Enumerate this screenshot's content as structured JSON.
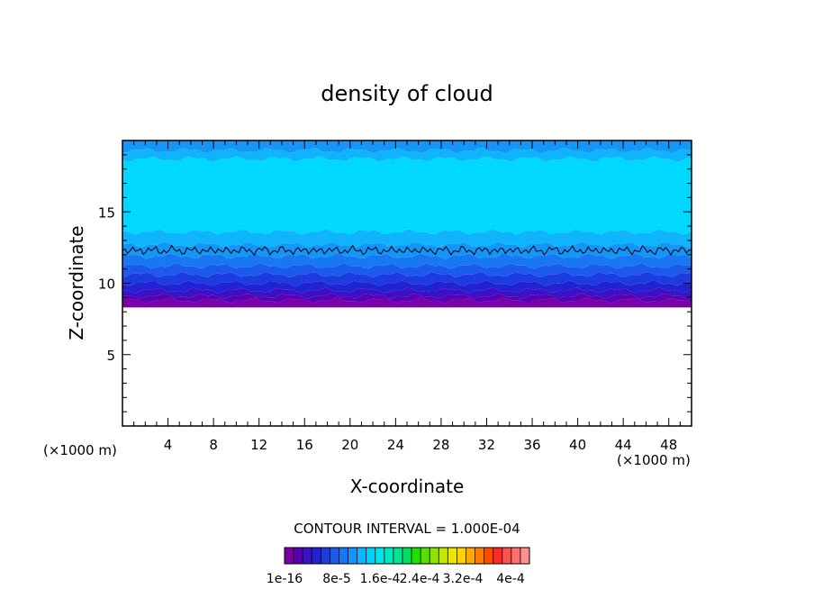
{
  "chart_data": {
    "type": "heatmap",
    "title": "density of cloud",
    "xlabel": "X-coordinate",
    "ylabel": "Z-coordinate",
    "x_unit_left": "(×1000 m)",
    "x_unit_right": "(×1000 m)",
    "xlim": [
      0,
      50
    ],
    "ylim": [
      0,
      20
    ],
    "x_ticks": [
      4,
      8,
      12,
      16,
      20,
      24,
      28,
      32,
      36,
      40,
      44,
      48
    ],
    "y_ticks": [
      5,
      10,
      15
    ],
    "contour_interval_text": "CONTOUR INTERVAL = 1.000E-04",
    "colorbar": {
      "labels": [
        "1e-16",
        "8e-5",
        "1.6e-4",
        "2.4e-4",
        "3.2e-4",
        "4e-4"
      ],
      "colors": [
        "#7a00a6",
        "#5a00b4",
        "#3c10c4",
        "#2222d2",
        "#1c3ce0",
        "#1c5aec",
        "#1878f4",
        "#1496f8",
        "#10b4fc",
        "#00d0ff",
        "#00e6e6",
        "#00e8c0",
        "#00e494",
        "#00e060",
        "#20e000",
        "#54e000",
        "#8ce400",
        "#c0e800",
        "#e8e800",
        "#ffd200",
        "#ffaa00",
        "#ff7c00",
        "#ff4c00",
        "#ff2a24",
        "#ff5050",
        "#ff7070",
        "#ff9090"
      ]
    },
    "field": {
      "cloud_base_z": 8.3,
      "cloud_top_z": 20,
      "contour_line_z": 12.3,
      "bands": [
        {
          "z0": 8.3,
          "z1": 8.8,
          "color": "#7a00a6"
        },
        {
          "z0": 8.8,
          "z1": 9.1,
          "color": "#5a00b4"
        },
        {
          "z0": 9.1,
          "z1": 9.5,
          "color": "#3c10c4"
        },
        {
          "z0": 9.5,
          "z1": 10.0,
          "color": "#2222d2"
        },
        {
          "z0": 10.0,
          "z1": 10.6,
          "color": "#1c3ce0"
        },
        {
          "z0": 10.6,
          "z1": 11.2,
          "color": "#1c5aec"
        },
        {
          "z0": 11.2,
          "z1": 11.9,
          "color": "#1878f4"
        },
        {
          "z0": 11.9,
          "z1": 12.7,
          "color": "#1496f8"
        },
        {
          "z0": 12.7,
          "z1": 13.6,
          "color": "#10b4fc"
        },
        {
          "z0": 13.6,
          "z1": 18.7,
          "color": "#00d8ff"
        },
        {
          "z0": 18.7,
          "z1": 19.3,
          "color": "#10b4fc"
        },
        {
          "z0": 19.3,
          "z1": 20.0,
          "color": "#1496f8"
        }
      ]
    }
  }
}
